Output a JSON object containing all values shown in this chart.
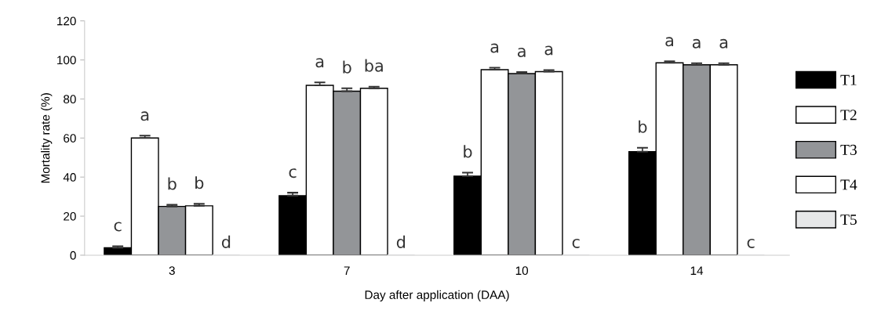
{
  "chart_data": {
    "type": "bar",
    "categories": [
      "3",
      "7",
      "10",
      "14"
    ],
    "xlabel": "Day after application (DAA)",
    "ylabel": "Mortality rate (%)",
    "ylim": [
      0,
      120
    ],
    "yticks": [
      0,
      20,
      40,
      60,
      80,
      100,
      120
    ],
    "grid": false,
    "legend": "right",
    "series": [
      {
        "name": "T1",
        "color": "#000000",
        "values": [
          3.8,
          30.5,
          40.5,
          53
        ],
        "errors": [
          0.8,
          1.5,
          1.8,
          2
        ],
        "value_labels": [
          "c",
          "c",
          "b",
          "b"
        ]
      },
      {
        "name": "T2",
        "color": "#ffffff",
        "values": [
          60,
          87,
          95,
          98.5
        ],
        "errors": [
          1.2,
          1.5,
          1,
          0.8
        ],
        "value_labels": [
          "a",
          "a",
          "a",
          "a"
        ]
      },
      {
        "name": "T3",
        "color": "#939598",
        "values": [
          25,
          84,
          93,
          97.5
        ],
        "errors": [
          0.8,
          1.5,
          0.8,
          0.8
        ],
        "value_labels": [
          "b",
          "b",
          "a",
          "a"
        ]
      },
      {
        "name": "T4",
        "color": "#ffffff",
        "values": [
          25.3,
          85.5,
          94,
          97.5
        ],
        "errors": [
          1,
          0.8,
          0.8,
          0.8
        ],
        "value_labels": [
          "b",
          "ba",
          "a",
          "a"
        ]
      },
      {
        "name": "T5",
        "color": "#e6e7e8",
        "values": [
          0,
          0,
          0,
          0
        ],
        "value_labels": [
          "d",
          "d",
          "c",
          "c"
        ]
      }
    ]
  }
}
